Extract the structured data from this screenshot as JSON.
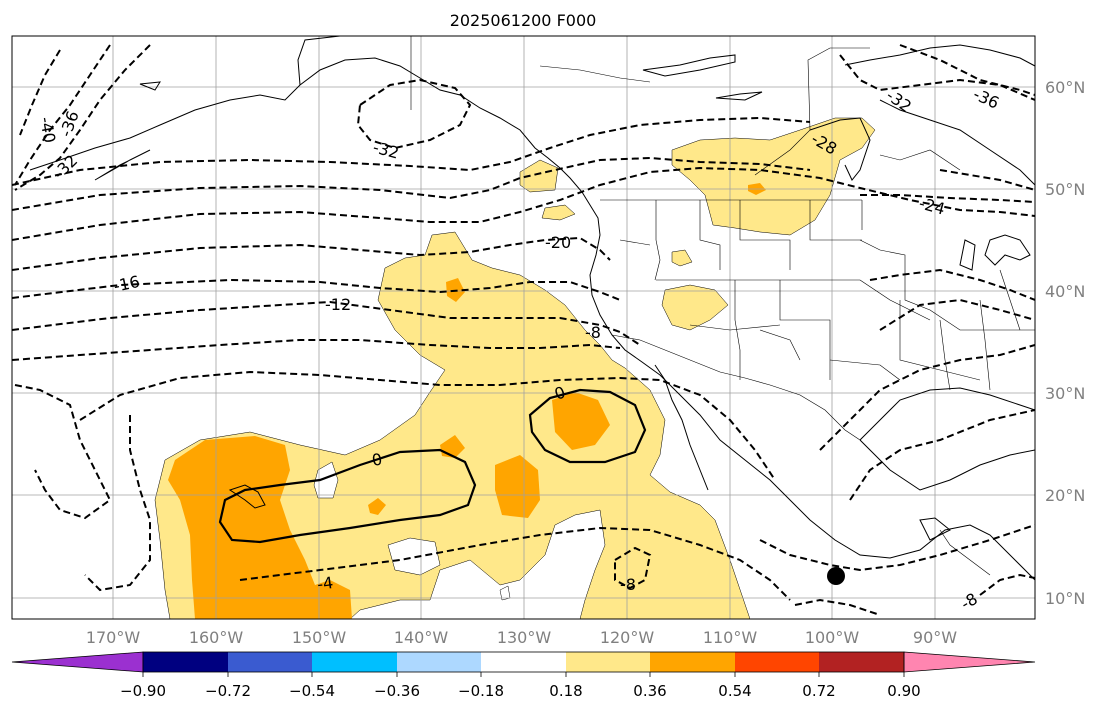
{
  "map": {
    "title": "2025061200 F000",
    "lon_labels": [
      "170°W",
      "160°W",
      "150°W",
      "140°W",
      "130°W",
      "120°W",
      "110°W",
      "100°W",
      "90°W"
    ],
    "lat_labels": [
      "60°N",
      "50°N",
      "40°N",
      "30°N",
      "20°N",
      "10°N"
    ],
    "contour_labels": [
      {
        "text": "-40"
      },
      {
        "text": "-36"
      },
      {
        "text": "-32"
      },
      {
        "text": "-32"
      },
      {
        "text": "-28"
      },
      {
        "text": "-24"
      },
      {
        "text": "-20"
      },
      {
        "text": "-16"
      },
      {
        "text": "-12"
      },
      {
        "text": "-8"
      },
      {
        "text": "0"
      },
      {
        "text": "0"
      },
      {
        "text": "-4"
      },
      {
        "text": "-8"
      },
      {
        "text": "-36"
      },
      {
        "text": "-32"
      },
      {
        "text": "-8"
      }
    ],
    "colorbar": {
      "ticks": [
        "−0.90",
        "−0.72",
        "−0.54",
        "−0.36",
        "−0.18",
        "0.18",
        "0.36",
        "0.54",
        "0.72",
        "0.90"
      ],
      "colors": [
        "#9b30d0",
        "#000080",
        "#3a5bd0",
        "#00bfff",
        "#add8ff",
        "#ffffff",
        "#ffe88a",
        "#ffa500",
        "#ff4500",
        "#b22222",
        "#ff85b0",
        "#ff85b0"
      ]
    },
    "shading_colors": {
      "light": "#ffe88a",
      "medium": "#ffa500"
    }
  }
}
